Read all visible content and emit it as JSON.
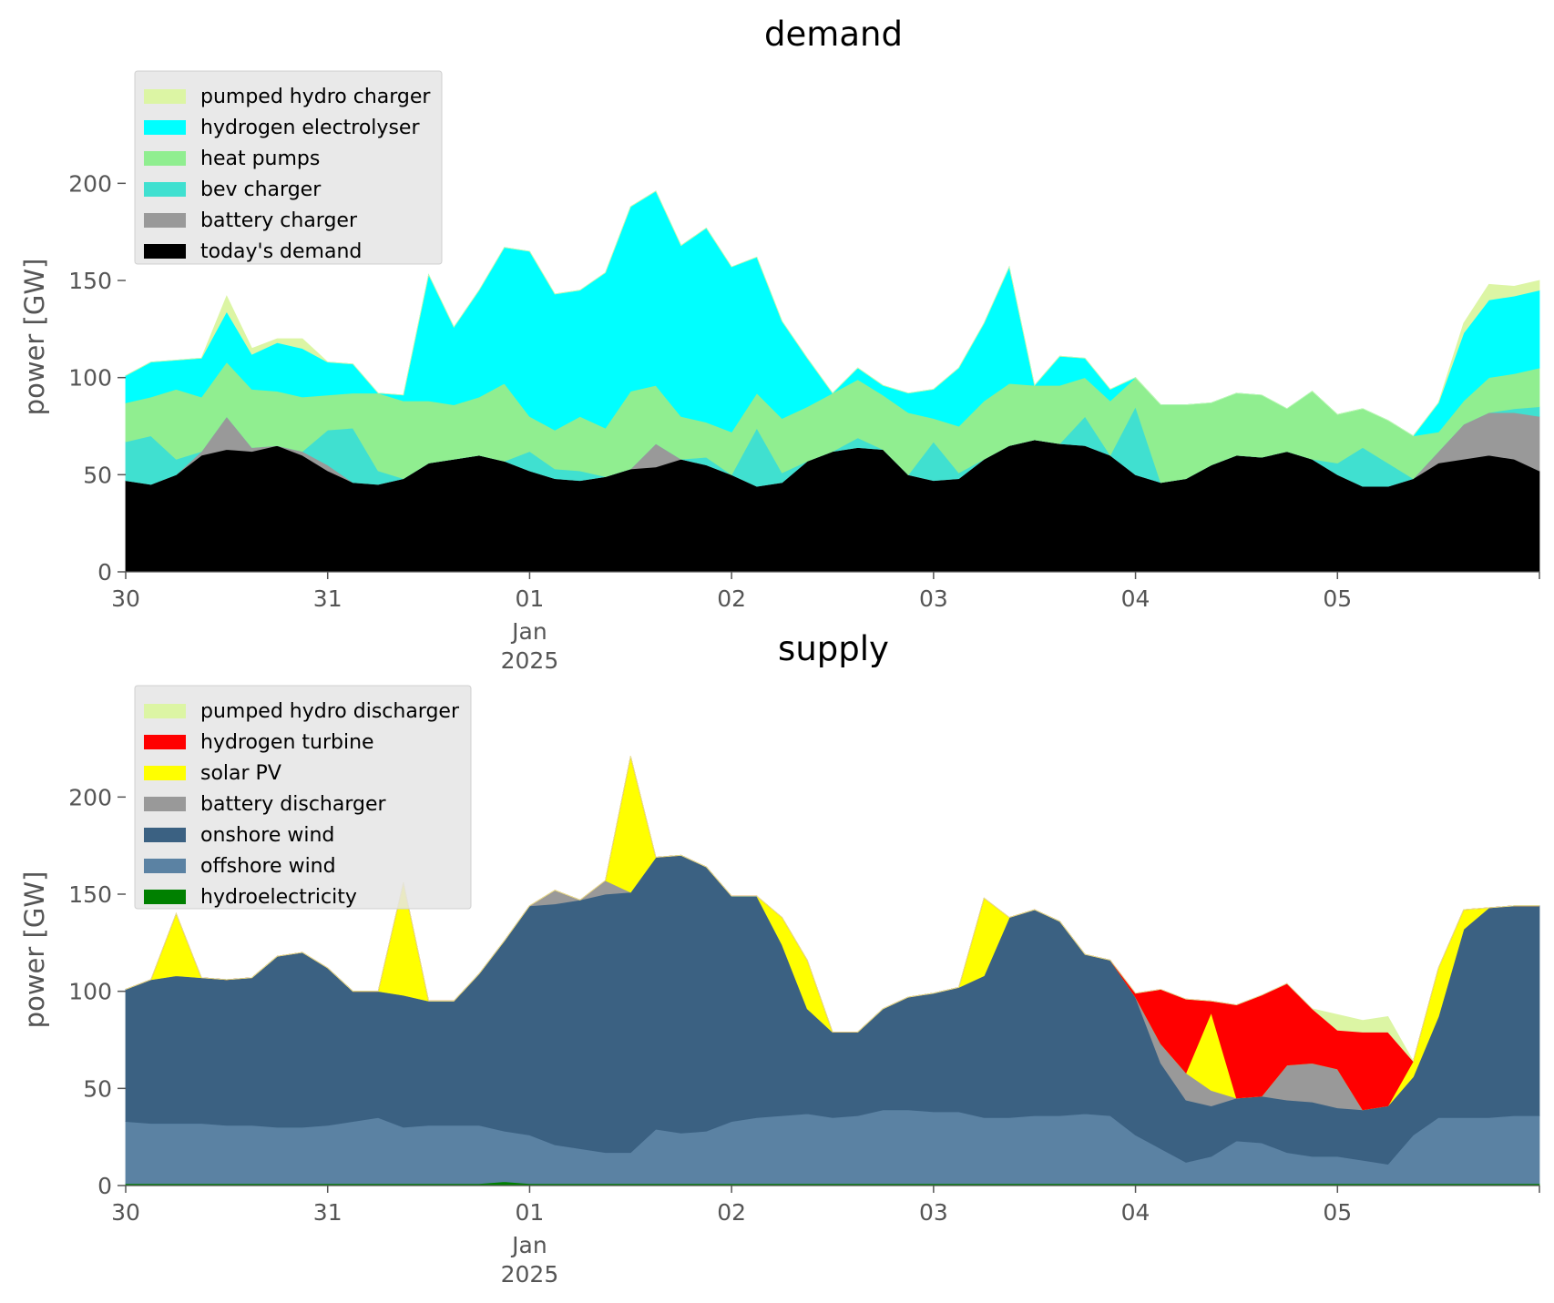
{
  "charts": [
    {
      "id": "demand",
      "title": "demand",
      "ylabel": "power [GW]",
      "ylim": [
        0,
        225
      ],
      "yticks": [
        0,
        50,
        100,
        150,
        200
      ],
      "xlim": [
        0,
        7
      ],
      "xticks": [
        {
          "x": 0,
          "label": "30"
        },
        {
          "x": 1,
          "label": "31"
        },
        {
          "x": 2,
          "label": "01",
          "sub": [
            "Jan",
            "2025"
          ]
        },
        {
          "x": 3,
          "label": "02"
        },
        {
          "x": 4,
          "label": "03"
        },
        {
          "x": 5,
          "label": "04"
        },
        {
          "x": 6,
          "label": "05"
        },
        {
          "x": 7,
          "label": ""
        }
      ]
    },
    {
      "id": "supply",
      "title": "supply",
      "ylabel": "power [GW]",
      "ylim": [
        0,
        225
      ],
      "yticks": [
        0,
        50,
        100,
        150,
        200
      ],
      "xlim": [
        0,
        7
      ],
      "xticks": [
        {
          "x": 0,
          "label": "30"
        },
        {
          "x": 1,
          "label": "31"
        },
        {
          "x": 2,
          "label": "01",
          "sub": [
            "Jan",
            "2025"
          ]
        },
        {
          "x": 3,
          "label": "02"
        },
        {
          "x": 4,
          "label": "03"
        },
        {
          "x": 5,
          "label": "04"
        },
        {
          "x": 6,
          "label": "05"
        },
        {
          "x": 7,
          "label": ""
        }
      ]
    }
  ],
  "chart_data": [
    {
      "type": "area",
      "stacked": true,
      "title": "demand",
      "ylabel": "power [GW]",
      "xlabel": "",
      "ylim": [
        0,
        225
      ],
      "x_unit": "days from 30 Dec 2024",
      "x": [
        0,
        0.125,
        0.25,
        0.375,
        0.5,
        0.625,
        0.75,
        0.875,
        1,
        1.125,
        1.25,
        1.375,
        1.5,
        1.625,
        1.75,
        1.875,
        2,
        2.125,
        2.25,
        2.375,
        2.5,
        2.625,
        2.75,
        2.875,
        3,
        3.125,
        3.25,
        3.375,
        3.5,
        3.625,
        3.75,
        3.875,
        4,
        4.125,
        4.25,
        4.375,
        4.5,
        4.625,
        4.75,
        4.875,
        5,
        5.125,
        5.25,
        5.375,
        5.5,
        5.625,
        5.75,
        5.875,
        6,
        6.125,
        6.25,
        6.375,
        6.5,
        6.625,
        6.75,
        6.875,
        7
      ],
      "legend": "upper-left",
      "series": [
        {
          "name": "today's demand",
          "color": "#000000",
          "values": [
            47,
            45,
            50,
            60,
            63,
            62,
            65,
            60,
            52,
            46,
            45,
            48,
            56,
            58,
            60,
            57,
            52,
            48,
            47,
            49,
            53,
            54,
            58,
            55,
            50,
            44,
            46,
            57,
            62,
            64,
            63,
            50,
            47,
            48,
            58,
            65,
            68,
            66,
            65,
            60,
            50,
            46,
            48,
            55,
            60,
            59,
            62,
            58,
            50,
            44,
            44,
            48,
            56,
            58,
            60,
            58,
            52
          ]
        },
        {
          "name": "battery charger",
          "color": "#999999",
          "values": [
            0,
            0,
            0,
            2,
            17,
            2,
            0,
            2,
            3,
            0,
            0,
            0,
            0,
            0,
            0,
            0,
            0,
            0,
            0,
            0,
            0,
            12,
            0,
            0,
            0,
            0,
            0,
            0,
            0,
            0,
            0,
            0,
            0,
            0,
            0,
            0,
            0,
            0,
            0,
            0,
            0,
            0,
            0,
            0,
            0,
            0,
            0,
            0,
            0,
            0,
            0,
            0,
            6,
            18,
            22,
            24,
            28
          ]
        },
        {
          "name": "bev charger",
          "color": "#40e0d0",
          "values": [
            20,
            25,
            8,
            0,
            0,
            0,
            0,
            0,
            18,
            28,
            7,
            0,
            0,
            0,
            0,
            0,
            10,
            5,
            5,
            0,
            0,
            0,
            0,
            4,
            0,
            30,
            5,
            0,
            0,
            5,
            0,
            0,
            20,
            3,
            0,
            0,
            0,
            0,
            15,
            0,
            35,
            0,
            0,
            0,
            0,
            0,
            0,
            0,
            6,
            20,
            12,
            0,
            0,
            0,
            0,
            2,
            5
          ]
        },
        {
          "name": "heat pumps",
          "color": "#90ee90",
          "values": [
            20,
            20,
            36,
            28,
            28,
            30,
            28,
            28,
            18,
            18,
            40,
            40,
            32,
            28,
            30,
            40,
            18,
            20,
            28,
            25,
            40,
            30,
            22,
            18,
            22,
            18,
            28,
            28,
            30,
            30,
            28,
            32,
            12,
            24,
            30,
            32,
            28,
            30,
            20,
            28,
            15,
            40,
            38,
            32,
            32,
            32,
            22,
            35,
            25,
            20,
            22,
            22,
            10,
            12,
            18,
            18,
            20
          ]
        },
        {
          "name": "hydrogen electrolyser",
          "color": "#00ffff",
          "values": [
            14,
            18,
            15,
            20,
            26,
            18,
            25,
            25,
            17,
            15,
            0,
            3,
            65,
            40,
            55,
            70,
            85,
            70,
            65,
            80,
            95,
            100,
            88,
            100,
            85,
            70,
            50,
            25,
            0,
            6,
            5,
            10,
            15,
            30,
            40,
            60,
            0,
            15,
            10,
            6,
            0,
            0,
            0,
            0,
            0,
            0,
            0,
            0,
            0,
            0,
            0,
            0,
            15,
            35,
            40,
            40,
            40
          ]
        },
        {
          "name": "pumped hydro charger",
          "color": "#dcf5a4",
          "values": [
            0,
            0,
            0,
            0,
            8,
            3,
            2,
            5,
            0,
            0,
            0,
            0,
            0,
            0,
            0,
            0,
            0,
            0,
            0,
            0,
            0,
            0,
            0,
            0,
            0,
            0,
            0,
            0,
            0,
            0,
            0,
            0,
            0,
            0,
            0,
            0,
            0,
            0,
            0,
            0,
            0,
            0,
            0,
            0,
            0,
            0,
            0,
            0,
            0,
            0,
            0,
            0,
            0,
            5,
            8,
            5,
            5
          ]
        }
      ]
    },
    {
      "type": "area",
      "stacked": true,
      "title": "supply",
      "ylabel": "power [GW]",
      "xlabel": "",
      "ylim": [
        0,
        225
      ],
      "x_unit": "days from 30 Dec 2024",
      "x": [
        0,
        0.125,
        0.25,
        0.375,
        0.5,
        0.625,
        0.75,
        0.875,
        1,
        1.125,
        1.25,
        1.375,
        1.5,
        1.625,
        1.75,
        1.875,
        2,
        2.125,
        2.25,
        2.375,
        2.5,
        2.625,
        2.75,
        2.875,
        3,
        3.125,
        3.25,
        3.375,
        3.5,
        3.625,
        3.75,
        3.875,
        4,
        4.125,
        4.25,
        4.375,
        4.5,
        4.625,
        4.75,
        4.875,
        5,
        5.125,
        5.25,
        5.375,
        5.5,
        5.625,
        5.75,
        5.875,
        6,
        6.125,
        6.25,
        6.375,
        6.5,
        6.625,
        6.75,
        6.875,
        7
      ],
      "legend": "upper-left",
      "series": [
        {
          "name": "hydroelectricity",
          "color": "#008000",
          "values": [
            1,
            1,
            1,
            1,
            1,
            1,
            1,
            1,
            1,
            1,
            1,
            1,
            1,
            1,
            1,
            2,
            1,
            1,
            1,
            1,
            1,
            1,
            1,
            1,
            1,
            1,
            1,
            1,
            1,
            1,
            1,
            1,
            1,
            1,
            1,
            1,
            1,
            1,
            1,
            1,
            1,
            1,
            1,
            1,
            1,
            1,
            1,
            1,
            1,
            1,
            1,
            1,
            1,
            1,
            1,
            1,
            1
          ]
        },
        {
          "name": "offshore wind",
          "color": "#5b82a3",
          "values": [
            32,
            31,
            31,
            31,
            30,
            30,
            29,
            29,
            30,
            32,
            34,
            29,
            30,
            30,
            30,
            26,
            25,
            20,
            18,
            16,
            16,
            28,
            26,
            27,
            32,
            34,
            35,
            36,
            34,
            35,
            38,
            38,
            37,
            37,
            34,
            34,
            35,
            35,
            36,
            35,
            25,
            18,
            11,
            14,
            22,
            21,
            16,
            14,
            14,
            12,
            10,
            25,
            34,
            34,
            34,
            35,
            35
          ]
        },
        {
          "name": "onshore wind",
          "color": "#3b6182",
          "values": [
            68,
            74,
            76,
            75,
            75,
            76,
            88,
            90,
            81,
            67,
            65,
            68,
            64,
            64,
            78,
            98,
            118,
            124,
            128,
            133,
            134,
            140,
            143,
            136,
            116,
            114,
            88,
            54,
            44,
            43,
            52,
            58,
            61,
            64,
            73,
            103,
            106,
            100,
            82,
            80,
            71,
            44,
            32,
            26,
            22,
            24,
            27,
            28,
            25,
            26,
            30,
            30,
            52,
            97,
            108,
            108,
            108
          ]
        },
        {
          "name": "battery discharger",
          "color": "#999999",
          "values": [
            0,
            0,
            0,
            0,
            0,
            0,
            0,
            0,
            0,
            0,
            0,
            0,
            0,
            0,
            0,
            0,
            0,
            7,
            0,
            7,
            0,
            0,
            0,
            0,
            0,
            0,
            0,
            0,
            0,
            0,
            0,
            0,
            0,
            0,
            0,
            0,
            0,
            0,
            0,
            0,
            0,
            10,
            14,
            8,
            0,
            0,
            18,
            20,
            20,
            0,
            0,
            0,
            0,
            0,
            0,
            0,
            0
          ]
        },
        {
          "name": "solar PV",
          "color": "#ffff00",
          "values": [
            0,
            0,
            32,
            0,
            0,
            0,
            0,
            0,
            0,
            0,
            0,
            58,
            0,
            0,
            0,
            0,
            0,
            0,
            0,
            0,
            70,
            0,
            0,
            0,
            0,
            0,
            14,
            25,
            0,
            0,
            0,
            0,
            0,
            0,
            40,
            0,
            0,
            0,
            0,
            0,
            0,
            0,
            0,
            40,
            0,
            0,
            0,
            0,
            0,
            0,
            0,
            8,
            25,
            10,
            0,
            0,
            0
          ]
        },
        {
          "name": "hydrogen turbine",
          "color": "#ff0000",
          "values": [
            0,
            0,
            0,
            0,
            0,
            0,
            0,
            0,
            0,
            0,
            0,
            0,
            0,
            0,
            0,
            0,
            0,
            0,
            0,
            0,
            0,
            0,
            0,
            0,
            0,
            0,
            0,
            0,
            0,
            0,
            0,
            0,
            0,
            0,
            0,
            0,
            0,
            0,
            0,
            0,
            2,
            28,
            38,
            6,
            48,
            52,
            42,
            28,
            20,
            40,
            38,
            0,
            0,
            0,
            0,
            0,
            0
          ]
        },
        {
          "name": "pumped hydro discharger",
          "color": "#dcf5a4",
          "values": [
            0,
            0,
            0,
            0,
            0,
            0,
            0,
            0,
            0,
            0,
            0,
            0,
            0,
            0,
            0,
            0,
            0,
            0,
            0,
            0,
            0,
            0,
            0,
            0,
            0,
            0,
            0,
            0,
            0,
            0,
            0,
            0,
            0,
            0,
            0,
            0,
            0,
            0,
            0,
            0,
            0,
            0,
            0,
            0,
            0,
            0,
            0,
            0,
            8,
            6,
            8,
            0,
            0,
            0,
            0,
            0,
            0
          ]
        }
      ]
    }
  ]
}
